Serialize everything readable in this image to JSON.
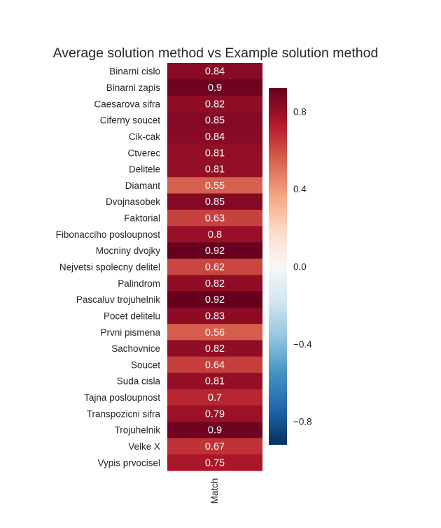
{
  "chart_data": {
    "type": "heatmap",
    "title": "Average solution method vs Example solution method",
    "columns": [
      "Match"
    ],
    "rows": [
      "Binarni cislo",
      "Binarni zapis",
      "Caesarova sifra",
      "Ciferny soucet",
      "Cik-cak",
      "Ctverec",
      "Delitele",
      "Diamant",
      "Dvojnasobek",
      "Faktorial",
      "Fibonacciho posloupnost",
      "Mocniny dvojky",
      "Nejvetsi spolecny delitel",
      "Palindrom",
      "Pascaluv trojuhelnik",
      "Pocet delitelu",
      "Prvni pismena",
      "Sachovnice",
      "Soucet",
      "Suda cisla",
      "Tajna posloupnost",
      "Transpozicni sifra",
      "Trojuhelnik",
      "Velke X",
      "Vypis prvocisel"
    ],
    "values": [
      0.84,
      0.9,
      0.82,
      0.85,
      0.84,
      0.81,
      0.81,
      0.55,
      0.85,
      0.63,
      0.8,
      0.92,
      0.62,
      0.82,
      0.92,
      0.83,
      0.56,
      0.82,
      0.64,
      0.81,
      0.7,
      0.79,
      0.9,
      0.67,
      0.75
    ],
    "value_labels": [
      "0.84",
      "0.9",
      "0.82",
      "0.85",
      "0.84",
      "0.81",
      "0.81",
      "0.55",
      "0.85",
      "0.63",
      "0.8",
      "0.92",
      "0.62",
      "0.82",
      "0.92",
      "0.83",
      "0.56",
      "0.82",
      "0.64",
      "0.81",
      "0.7",
      "0.79",
      "0.9",
      "0.67",
      "0.75"
    ],
    "colormap": "RdBu_r",
    "vmin": -0.92,
    "vmax": 0.92,
    "colorbar_ticks": [
      0.8,
      0.4,
      0.0,
      -0.4,
      -0.8
    ],
    "colorbar_tick_labels": [
      "0.8",
      "0.4",
      "0.0",
      "−0.4",
      "−0.8"
    ],
    "grid": false
  }
}
